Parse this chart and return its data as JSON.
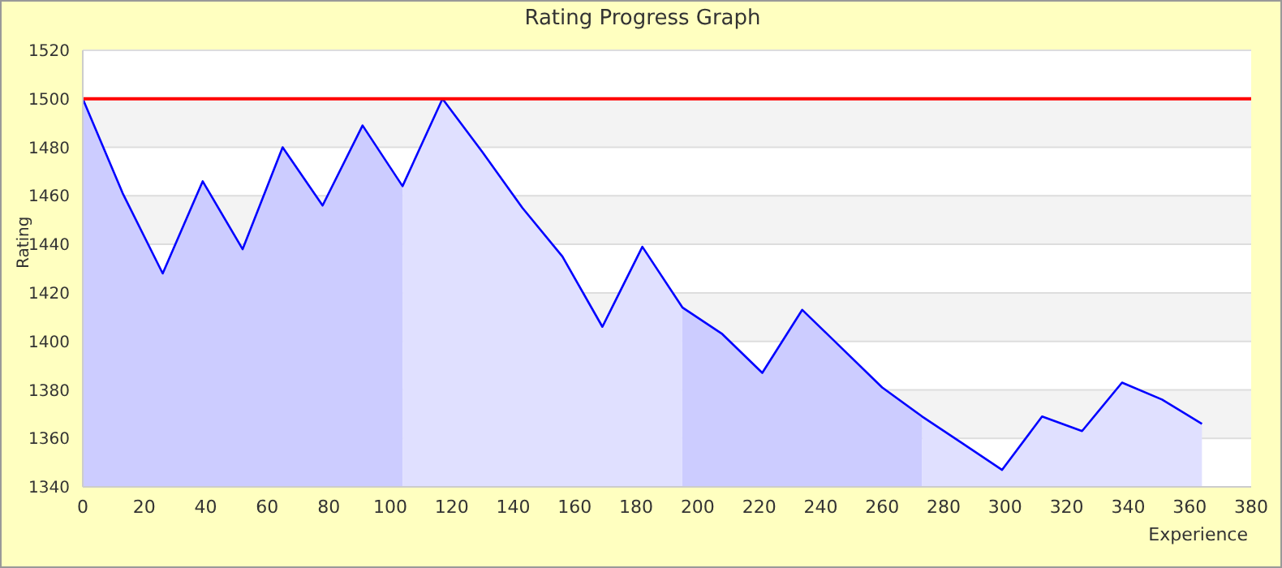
{
  "chart_data": {
    "type": "line",
    "title": "Rating Progress Graph",
    "xlabel": "Experience",
    "ylabel": "Rating",
    "x": [
      0,
      13,
      26,
      39,
      52,
      65,
      78,
      91,
      104,
      117,
      130,
      143,
      156,
      169,
      182,
      195,
      208,
      221,
      234,
      247,
      260,
      273,
      286,
      299,
      312,
      325,
      338,
      351,
      364
    ],
    "series": [
      {
        "color": "#0000ff",
        "values": [
          1500,
          1461,
          1428,
          1466,
          1438,
          1480,
          1456,
          1489,
          1464,
          1500,
          1478,
          1455,
          1435,
          1406,
          1439,
          1414,
          1403,
          1387,
          1413,
          1397,
          1381,
          1369,
          1358,
          1347,
          1369,
          1363,
          1383,
          1376,
          1366
        ]
      },
      {
        "type": "area",
        "color": "#ccccff",
        "values": [
          1500,
          1461,
          1428,
          1466,
          1438,
          1480,
          1456,
          1489,
          1464,
          null,
          null,
          null,
          null,
          null,
          null,
          1414,
          1403,
          1387,
          1413,
          1397,
          1381,
          1369,
          null,
          null,
          null,
          null,
          null,
          null,
          null
        ]
      },
      {
        "type": "area",
        "color": "#e0e0ff",
        "values": [
          null,
          null,
          null,
          null,
          null,
          null,
          null,
          null,
          1464,
          1500,
          1478,
          1455,
          1435,
          1406,
          1439,
          1414,
          null,
          null,
          null,
          null,
          null,
          1369,
          1358,
          1347,
          1369,
          1363,
          1383,
          1376,
          1366
        ]
      }
    ],
    "xlim": [
      0,
      380
    ],
    "xticks": [
      0,
      20,
      40,
      60,
      80,
      100,
      120,
      140,
      160,
      180,
      200,
      220,
      240,
      260,
      280,
      300,
      320,
      340,
      360,
      380
    ],
    "ylim": [
      1340,
      1520
    ],
    "yticks": [
      1340,
      1360,
      1380,
      1400,
      1420,
      1440,
      1460,
      1480,
      1500,
      1520
    ],
    "grid": "y",
    "marker": "none",
    "line_style": "solid",
    "ref_lines": [
      {
        "axis": "y",
        "value": 1500,
        "color": "#ff0000"
      }
    ]
  }
}
